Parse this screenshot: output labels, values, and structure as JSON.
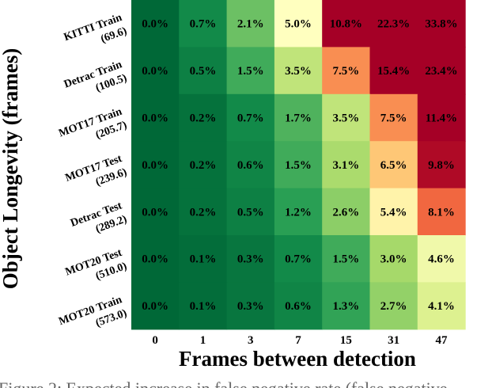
{
  "chart_data": {
    "type": "heatmap",
    "xlabel": "Frames between detection",
    "ylabel": "Object Longevity (frames)",
    "x_categories": [
      "0",
      "1",
      "3",
      "7",
      "15",
      "31",
      "47"
    ],
    "y_categories": [
      {
        "name": "KITTI Train",
        "longevity": "(69.6)"
      },
      {
        "name": "Detrac Train",
        "longevity": "(100.5)"
      },
      {
        "name": "MOT17 Train",
        "longevity": "(205.7)"
      },
      {
        "name": "MOT17 Test",
        "longevity": "(239.6)"
      },
      {
        "name": "Detrac Test",
        "longevity": "(289.2)"
      },
      {
        "name": "MOT20 Test",
        "longevity": "(510.0)"
      },
      {
        "name": "MOT20 Train",
        "longevity": "(573.0)"
      }
    ],
    "values": [
      [
        0.0,
        0.7,
        2.1,
        5.0,
        10.8,
        22.3,
        33.8
      ],
      [
        0.0,
        0.5,
        1.5,
        3.5,
        7.5,
        15.4,
        23.4
      ],
      [
        0.0,
        0.2,
        0.7,
        1.7,
        3.5,
        7.5,
        11.4
      ],
      [
        0.0,
        0.2,
        0.6,
        1.5,
        3.1,
        6.5,
        9.8
      ],
      [
        0.0,
        0.2,
        0.5,
        1.2,
        2.6,
        5.4,
        8.1
      ],
      [
        0.0,
        0.1,
        0.3,
        0.7,
        1.5,
        3.0,
        4.6
      ],
      [
        0.0,
        0.1,
        0.3,
        0.6,
        1.3,
        2.7,
        4.1
      ]
    ],
    "value_suffix": "%",
    "colormap": "RdYlGn_r",
    "color_range": [
      0,
      10
    ],
    "colors": {
      "low": "#006837",
      "mid": "#ffffbf",
      "high": "#a50026"
    }
  },
  "caption_partial": "Figure 2: Expected increase in false negative rate (false negative"
}
